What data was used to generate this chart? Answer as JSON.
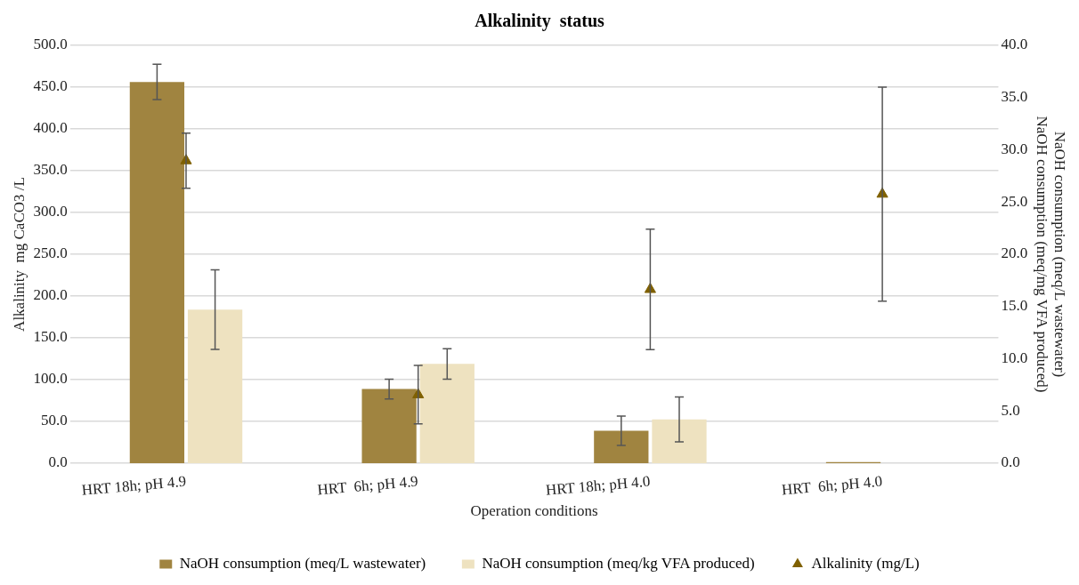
{
  "chart_data": {
    "type": "bar",
    "title": "Alkalinity  status",
    "xlabel": "Operation conditions",
    "ylabel": "Alkalinity  mg CaCO3 /L",
    "y2label": "NaOH consumption (meq/L wastewater)\nNaOH consumption (meq/mg VFA produced)",
    "categories": [
      "HRT 18h; pH 4.9",
      "HRT  6h; pH 4.9",
      "HRT 18h; pH 4.0",
      "HRT  6h; pH 4.0"
    ],
    "series": [
      {
        "name": "NaOH consumption (meq/L wastewater)",
        "axis": "y2",
        "color": "#a08440",
        "values": [
          36.5,
          7.1,
          3.1,
          0.1
        ],
        "errors": [
          1.7,
          0.95,
          1.4,
          null
        ]
      },
      {
        "name": "NaOH consumption (meq/kg VFA produced)",
        "axis": "y2",
        "color": "#eee2c0",
        "values": [
          14.7,
          9.5,
          4.2,
          0
        ],
        "errors": [
          3.8,
          1.45,
          2.15,
          null
        ]
      },
      {
        "name": "Alkalinity (mg/L)",
        "type": "scatter",
        "axis": "y",
        "color": "#7f6000",
        "marker": "triangle",
        "values": [
          362,
          82,
          208,
          322
        ],
        "errors": [
          33,
          35,
          72,
          128
        ]
      }
    ],
    "ylim": [
      0,
      500
    ],
    "yticks": [
      {
        "value": 0,
        "label": "0.0"
      },
      {
        "value": 50,
        "label": "50.0"
      },
      {
        "value": 100,
        "label": "100.0"
      },
      {
        "value": 150,
        "label": "150.0"
      },
      {
        "value": 200,
        "label": "200.0"
      },
      {
        "value": 250,
        "label": "250.0"
      },
      {
        "value": 300,
        "label": "300.0"
      },
      {
        "value": 350,
        "label": "350.0"
      },
      {
        "value": 400,
        "label": "400.0"
      },
      {
        "value": 450,
        "label": "450.0"
      },
      {
        "value": 500,
        "label": "500.0"
      }
    ],
    "y2lim": [
      0,
      40
    ],
    "y2ticks": [
      {
        "value": 0,
        "label": "0.0"
      },
      {
        "value": 5,
        "label": "5.0"
      },
      {
        "value": 10,
        "label": "10.0"
      },
      {
        "value": 15,
        "label": "15.0"
      },
      {
        "value": 20,
        "label": "20.0"
      },
      {
        "value": 25,
        "label": "25.0"
      },
      {
        "value": 30,
        "label": "30.0"
      },
      {
        "value": 35,
        "label": "35.0"
      },
      {
        "value": 40,
        "label": "40.0"
      }
    ],
    "grid": "y",
    "legend": "bottom"
  }
}
